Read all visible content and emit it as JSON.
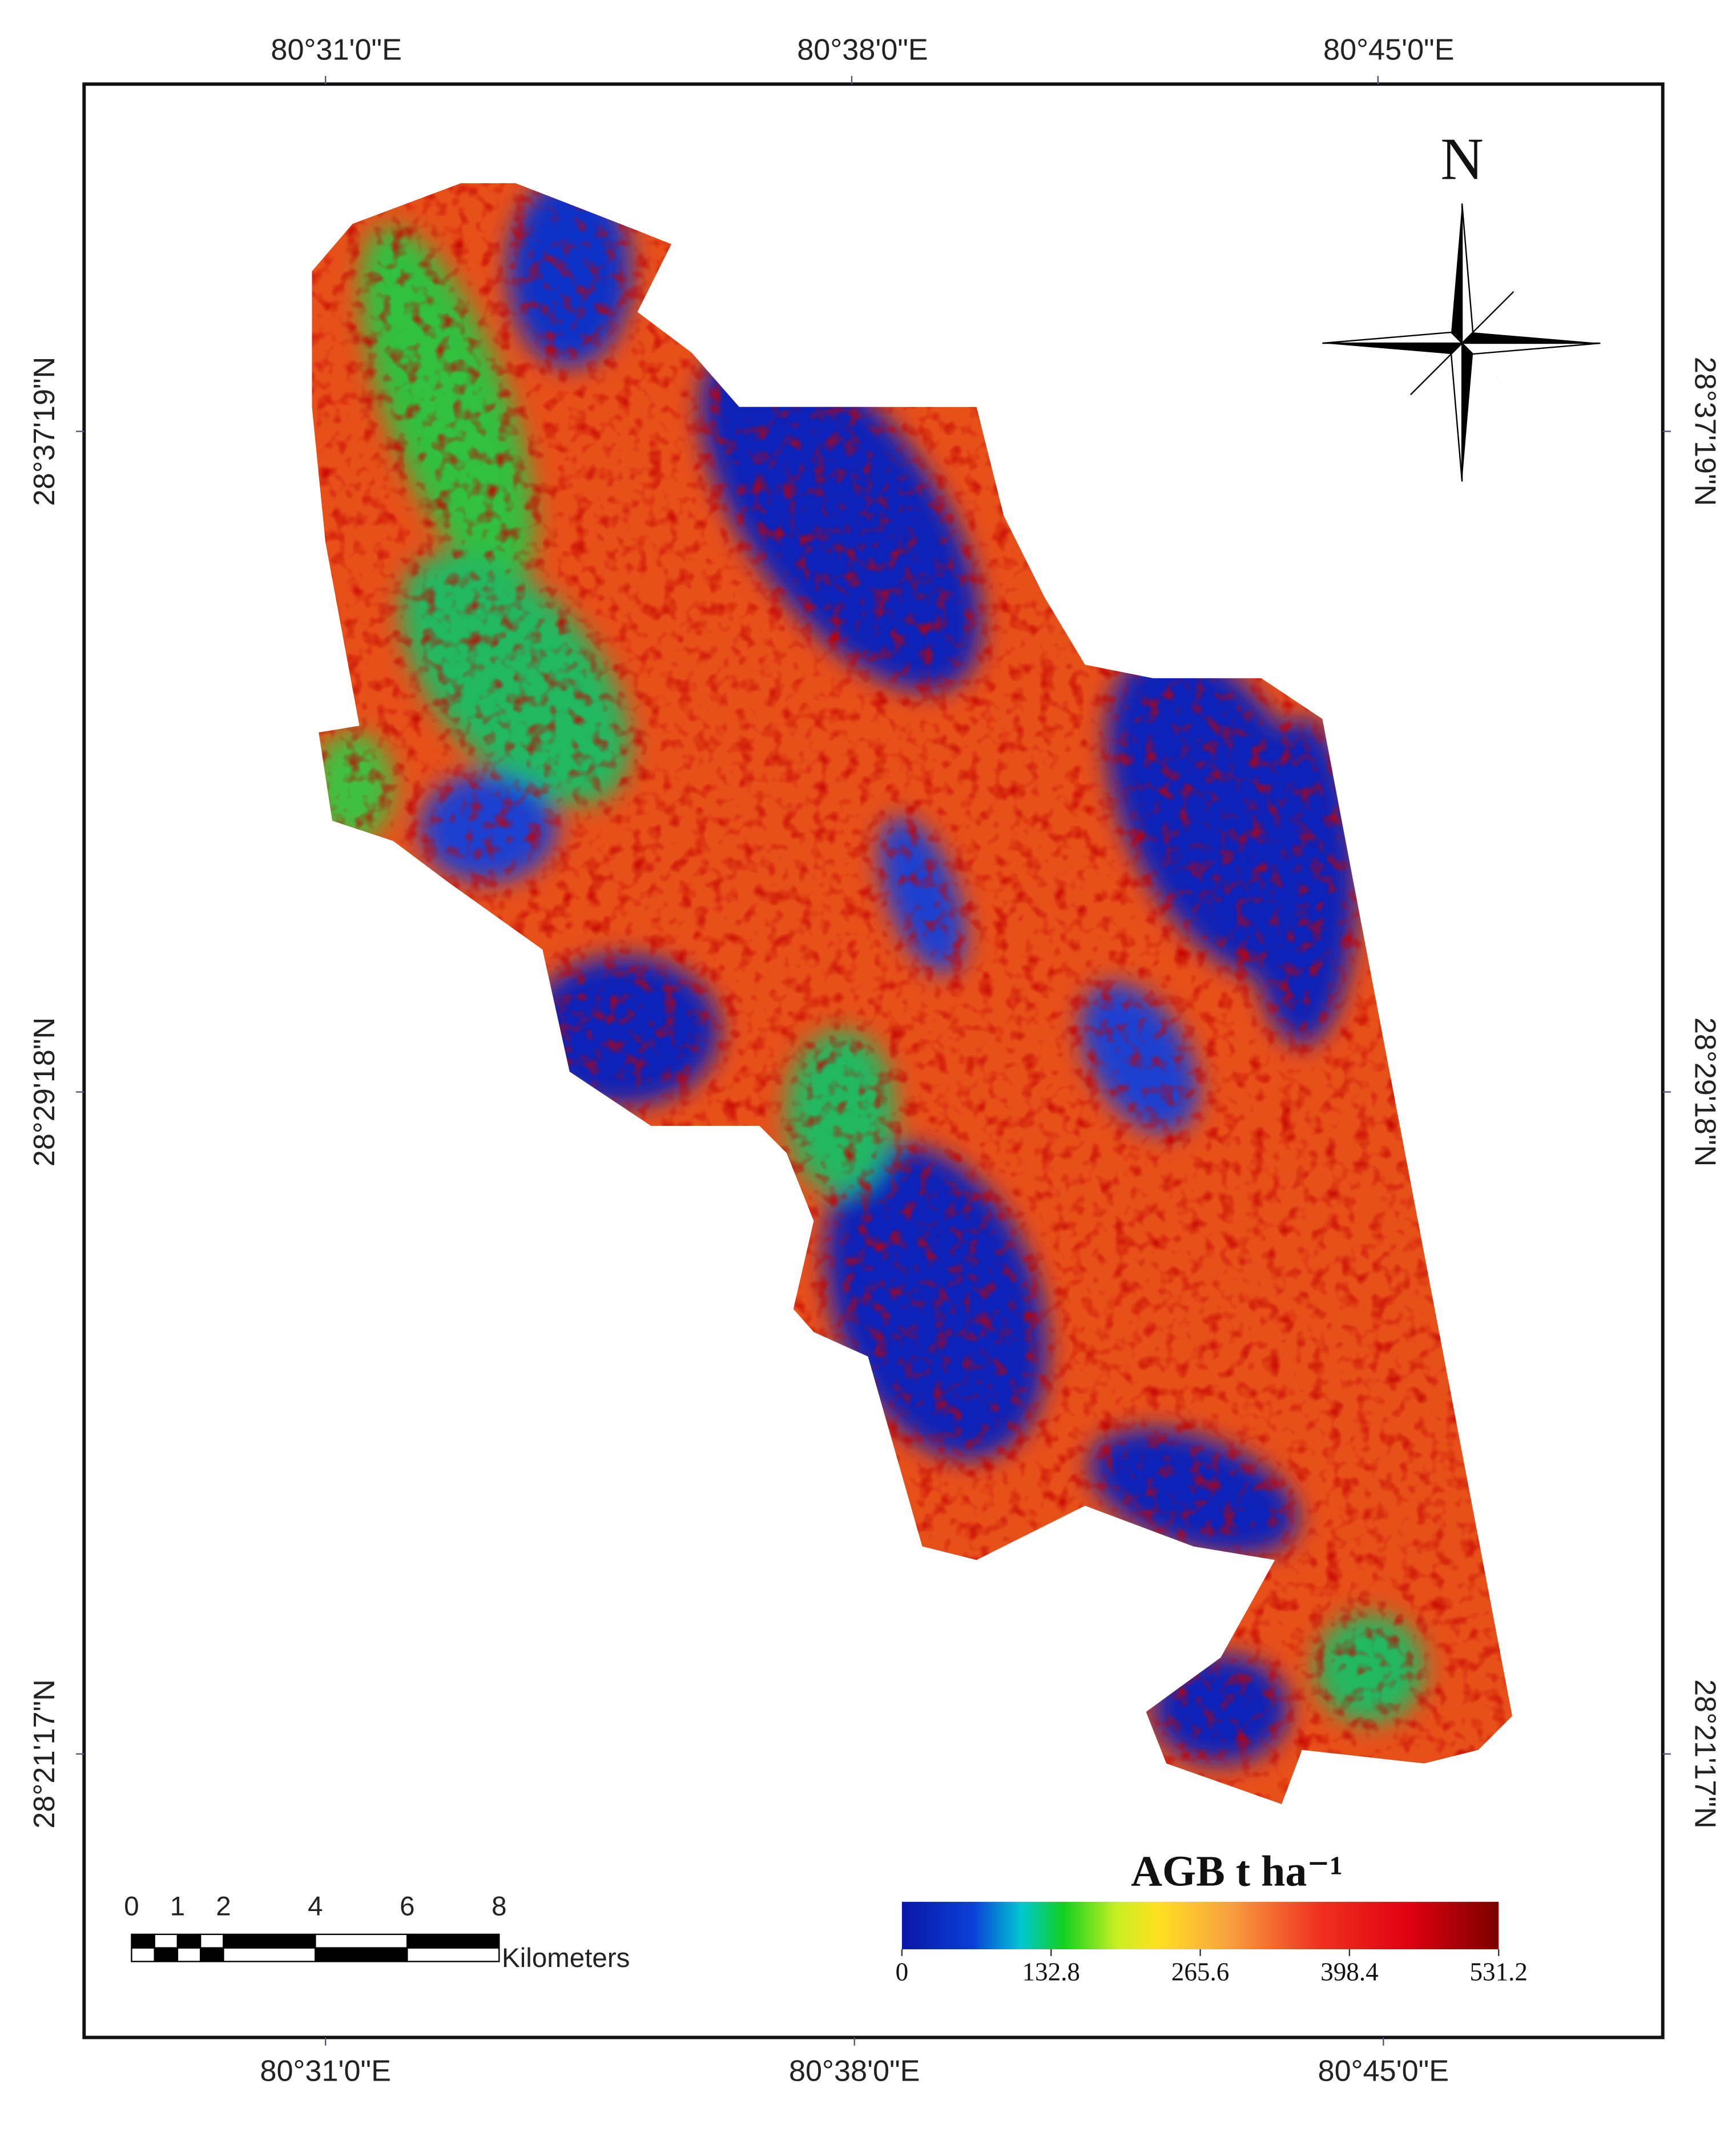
{
  "map": {
    "longitude_labels": [
      "80°31'0\"E",
      "80°38'0\"E",
      "80°45'0\"E"
    ],
    "latitude_labels": [
      "28°37'19\"N",
      "28°29'18\"N",
      "28°21'17\"N"
    ],
    "north": "N",
    "legend": {
      "title": "AGB t ha⁻¹",
      "range": [
        0,
        531.2
      ],
      "ticks": [
        0,
        132.8,
        265.6,
        398.4,
        531.2
      ]
    },
    "scale_bar": {
      "ticks": [
        0,
        1,
        2,
        4,
        6,
        8
      ],
      "unit": "Kilometers"
    }
  }
}
